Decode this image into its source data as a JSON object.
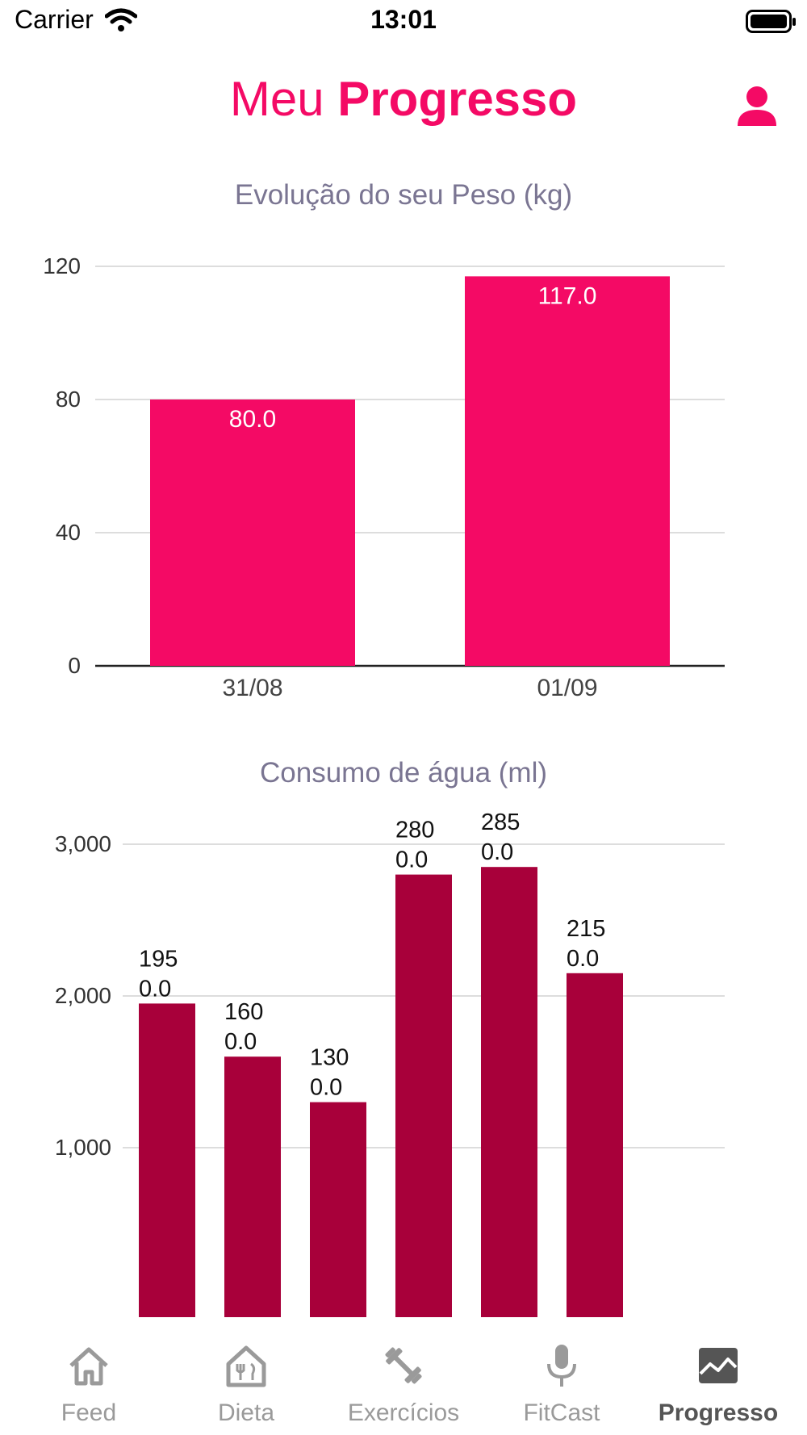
{
  "status_bar": {
    "carrier": "Carrier",
    "time": "13:01"
  },
  "header": {
    "title_light": "Meu",
    "title_bold": "Progresso"
  },
  "colors": {
    "accent": "#F40A65",
    "water_bar": "#A8003A",
    "muted_text": "#7a7592",
    "tab_inactive": "#9a9a9a",
    "tab_active": "#555555"
  },
  "weight_chart": {
    "title": "Evolução do seu Peso (kg)"
  },
  "water_chart": {
    "title": "Consumo de água (ml)"
  },
  "chart_data": [
    {
      "type": "bar",
      "title": "Evolução do seu Peso (kg)",
      "categories": [
        "31/08",
        "01/09"
      ],
      "values": [
        80.0,
        117.0
      ],
      "value_labels": [
        "80.0",
        "117.0"
      ],
      "yticks": [
        "0",
        "40",
        "80",
        "120"
      ],
      "ytick_values": [
        0,
        40,
        80,
        120
      ],
      "ylim": [
        0,
        120
      ],
      "grid": true
    },
    {
      "type": "bar",
      "title": "Consumo de água (ml)",
      "categories": [
        "",
        "",
        "",
        "",
        "",
        ""
      ],
      "values": [
        1950,
        1600,
        1300,
        2800,
        2850,
        2150
      ],
      "value_labels": [
        [
          "195",
          "0.0"
        ],
        [
          "160",
          "0.0"
        ],
        [
          "130",
          "0.0"
        ],
        [
          "280",
          "0.0"
        ],
        [
          "285",
          "0.0"
        ],
        [
          "215",
          "0.0"
        ]
      ],
      "yticks": [
        "1,000",
        "2,000",
        "3,000"
      ],
      "ytick_values": [
        1000,
        2000,
        3000
      ],
      "ylim": [
        700,
        3000
      ],
      "grid": true
    }
  ],
  "tabs": [
    {
      "label": "Feed",
      "icon": "home-icon",
      "active": false
    },
    {
      "label": "Dieta",
      "icon": "diet-icon",
      "active": false
    },
    {
      "label": "Exercícios",
      "icon": "dumbbell-icon",
      "active": false
    },
    {
      "label": "FitCast",
      "icon": "microphone-icon",
      "active": false
    },
    {
      "label": "Progresso",
      "icon": "progress-chart-icon",
      "active": true
    }
  ]
}
